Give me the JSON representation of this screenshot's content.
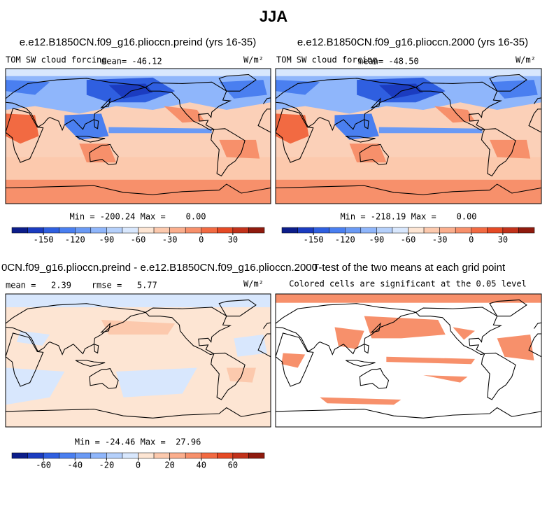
{
  "title": "JJA",
  "panels": [
    {
      "title": "e.e12.B1850CN.f09_g16.plioccn.preind (yrs 16-35)",
      "variable": "TOM SW cloud forcing",
      "stat": "mean= -46.12",
      "units": "W/m²",
      "minmax": "Min = -200.24 Max =    0.00"
    },
    {
      "title": "e.e12.B1850CN.f09_g16.plioccn.2000 (yrs 16-35)",
      "variable": "TOM SW cloud forcing",
      "stat": "mean= -48.50",
      "units": "W/m²",
      "minmax": "Min = -218.19 Max =    0.00"
    },
    {
      "title": "0CN.f09_g16.plioccn.preind - e.e12.B1850CN.f09_g16.plioccn.2000",
      "stat": "mean =   2.39    rmse =   5.77",
      "units": "W/m²",
      "minmax": "Min = -24.46 Max =  27.96"
    },
    {
      "title": "T-test of the two means at each grid point",
      "subtitle": "Colored cells are significant at the 0.05 level"
    }
  ],
  "palette": [
    "#0c1d8a",
    "#1b3cc0",
    "#2f5fe0",
    "#4a7ff0",
    "#6a9af5",
    "#8fb6fb",
    "#b5d0fb",
    "#d8e7fd",
    "#fde5d3",
    "#fcc9ad",
    "#fbae8d",
    "#f7906b",
    "#f26a42",
    "#e54a25",
    "#c2321b",
    "#8f1a0e"
  ],
  "colorbars": [
    {
      "lim": [
        -180,
        60
      ],
      "ticks": [
        -150,
        -120,
        -90,
        -60,
        -30,
        0,
        30
      ]
    },
    {
      "lim": [
        -180,
        60
      ],
      "ticks": [
        -150,
        -120,
        -90,
        -60,
        -30,
        0,
        30
      ]
    },
    {
      "lim": [
        -80,
        80
      ],
      "ticks": [
        -60,
        -40,
        -20,
        0,
        20,
        40,
        60
      ]
    }
  ]
}
